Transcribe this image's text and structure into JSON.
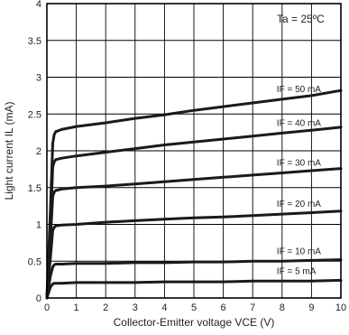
{
  "chart_data": {
    "type": "line",
    "xlabel": "Collector-Emitter voltage VCE (V)",
    "ylabel": "Light current IL (mA)",
    "xlim": [
      0,
      10
    ],
    "ylim": [
      0,
      4
    ],
    "x_ticks": [
      "0",
      "1",
      "2",
      "3",
      "4",
      "5",
      "6",
      "7",
      "8",
      "9",
      "10"
    ],
    "y_ticks": [
      "0",
      "0.5",
      "1",
      "1.5",
      "2",
      "2.5",
      "3",
      "3.5",
      "4"
    ],
    "grid": true,
    "annotation": "Ta = 25ºC",
    "series": [
      {
        "name": "IF = 50 mA",
        "x": [
          0,
          0.12,
          0.2,
          0.25,
          0.3,
          0.5,
          1,
          2,
          3,
          4,
          5,
          6,
          7,
          8,
          9,
          10
        ],
        "y": [
          0,
          1.2,
          2.1,
          2.22,
          2.26,
          2.29,
          2.33,
          2.38,
          2.44,
          2.49,
          2.55,
          2.6,
          2.65,
          2.7,
          2.75,
          2.82
        ]
      },
      {
        "name": "IF = 40 mA",
        "x": [
          0,
          0.12,
          0.2,
          0.25,
          0.3,
          0.5,
          1,
          2,
          3,
          4,
          5,
          6,
          7,
          8,
          9,
          10
        ],
        "y": [
          0,
          1.0,
          1.78,
          1.85,
          1.88,
          1.9,
          1.93,
          1.98,
          2.03,
          2.08,
          2.12,
          2.16,
          2.2,
          2.24,
          2.28,
          2.32
        ]
      },
      {
        "name": "IF = 30 mA",
        "x": [
          0,
          0.12,
          0.2,
          0.25,
          0.3,
          0.5,
          1,
          2,
          3,
          4,
          5,
          6,
          7,
          8,
          9,
          10
        ],
        "y": [
          0,
          0.8,
          1.38,
          1.44,
          1.46,
          1.48,
          1.5,
          1.52,
          1.55,
          1.58,
          1.61,
          1.64,
          1.67,
          1.7,
          1.73,
          1.76
        ]
      },
      {
        "name": "IF = 20 mA",
        "x": [
          0,
          0.12,
          0.2,
          0.25,
          0.3,
          0.5,
          1,
          2,
          3,
          4,
          5,
          6,
          7,
          8,
          9,
          10
        ],
        "y": [
          0,
          0.55,
          0.92,
          0.96,
          0.98,
          0.99,
          1.0,
          1.03,
          1.05,
          1.07,
          1.09,
          1.1,
          1.12,
          1.14,
          1.16,
          1.18
        ]
      },
      {
        "name": "IF = 10 mA",
        "x": [
          0,
          0.12,
          0.2,
          0.25,
          0.3,
          0.5,
          1,
          2,
          3,
          4,
          5,
          6,
          7,
          8,
          9,
          10
        ],
        "y": [
          0,
          0.3,
          0.42,
          0.45,
          0.46,
          0.46,
          0.47,
          0.47,
          0.48,
          0.48,
          0.49,
          0.49,
          0.5,
          0.5,
          0.51,
          0.52
        ]
      },
      {
        "name": "IF = 5 mA",
        "x": [
          0,
          0.12,
          0.2,
          0.25,
          0.3,
          0.5,
          1,
          2,
          3,
          4,
          5,
          6,
          7,
          8,
          9,
          10
        ],
        "y": [
          0,
          0.15,
          0.19,
          0.2,
          0.2,
          0.2,
          0.21,
          0.21,
          0.21,
          0.22,
          0.22,
          0.22,
          0.23,
          0.23,
          0.23,
          0.24
        ]
      }
    ],
    "series_labels": [
      "IF = 50 mA",
      "IF = 40 mA",
      "IF = 30 mA",
      "IF = 20 mA",
      "IF = 10 mA",
      "IF = 5 mA"
    ]
  }
}
